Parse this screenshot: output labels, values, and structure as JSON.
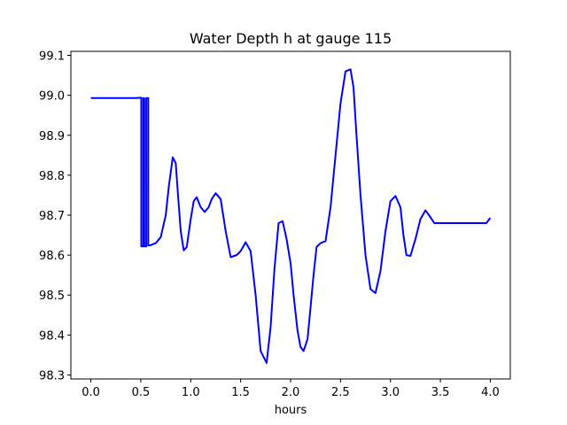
{
  "chart_data": {
    "type": "line",
    "title": "Water Depth h at gauge 115",
    "xlabel": "hours",
    "ylabel": "",
    "xlim": [
      -0.2,
      4.2
    ],
    "ylim": [
      98.29,
      99.11
    ],
    "xticks": [
      0.0,
      0.5,
      1.0,
      1.5,
      2.0,
      2.5,
      3.0,
      3.5,
      4.0
    ],
    "xtick_labels": [
      "0.0",
      "0.5",
      "1.0",
      "1.5",
      "2.0",
      "2.5",
      "3.0",
      "3.5",
      "4.0"
    ],
    "yticks": [
      98.3,
      98.4,
      98.5,
      98.6,
      98.7,
      98.8,
      98.9,
      99.0,
      99.1
    ],
    "ytick_labels": [
      "98.3",
      "98.4",
      "98.5",
      "98.6",
      "98.7",
      "98.8",
      "98.9",
      "99.0",
      "99.1"
    ],
    "grid": false,
    "series": [
      {
        "color": "#0000ff",
        "x": [
          0.0,
          0.1,
          0.2,
          0.3,
          0.4,
          0.45,
          0.5,
          0.505,
          0.505,
          0.525,
          0.525,
          0.535,
          0.535,
          0.555,
          0.555,
          0.575,
          0.575,
          0.6,
          0.65,
          0.7,
          0.75,
          0.78,
          0.82,
          0.85,
          0.87,
          0.9,
          0.93,
          0.96,
          1.0,
          1.03,
          1.06,
          1.1,
          1.14,
          1.18,
          1.21,
          1.25,
          1.3,
          1.35,
          1.4,
          1.46,
          1.5,
          1.55,
          1.6,
          1.65,
          1.7,
          1.76,
          1.8,
          1.84,
          1.88,
          1.92,
          1.96,
          2.0,
          2.03,
          2.07,
          2.1,
          2.13,
          2.17,
          2.2,
          2.23,
          2.26,
          2.3,
          2.35,
          2.4,
          2.45,
          2.5,
          2.55,
          2.6,
          2.63,
          2.66,
          2.7,
          2.75,
          2.8,
          2.85,
          2.9,
          2.95,
          3.0,
          3.05,
          3.1,
          3.13,
          3.16,
          3.2,
          3.25,
          3.3,
          3.35,
          3.4,
          3.44,
          3.48,
          3.52,
          3.56,
          3.6,
          3.64,
          3.68,
          3.72,
          3.76,
          3.8,
          3.84,
          3.88,
          3.92,
          3.96,
          4.0
        ],
        "y": [
          98.993,
          98.993,
          98.993,
          98.993,
          98.993,
          98.993,
          98.994,
          98.994,
          98.622,
          98.622,
          98.993,
          98.993,
          98.622,
          98.622,
          98.993,
          98.993,
          98.624,
          98.625,
          98.63,
          98.645,
          98.7,
          98.77,
          98.845,
          98.83,
          98.76,
          98.66,
          98.612,
          98.62,
          98.69,
          98.735,
          98.745,
          98.72,
          98.708,
          98.72,
          98.74,
          98.755,
          98.74,
          98.66,
          98.595,
          98.6,
          98.61,
          98.632,
          98.61,
          98.5,
          98.36,
          98.33,
          98.42,
          98.57,
          98.68,
          98.685,
          98.64,
          98.58,
          98.5,
          98.41,
          98.37,
          98.36,
          98.39,
          98.47,
          98.55,
          98.62,
          98.63,
          98.635,
          98.72,
          98.85,
          98.98,
          99.06,
          99.065,
          99.02,
          98.9,
          98.75,
          98.6,
          98.515,
          98.505,
          98.56,
          98.66,
          98.735,
          98.748,
          98.72,
          98.65,
          98.6,
          98.598,
          98.64,
          98.69,
          98.712,
          98.695,
          98.68,
          98.68,
          98.68,
          98.68,
          98.68,
          98.68,
          98.68,
          98.68,
          98.68,
          98.68,
          98.68,
          98.68,
          98.68,
          98.68,
          98.693
        ]
      }
    ]
  }
}
